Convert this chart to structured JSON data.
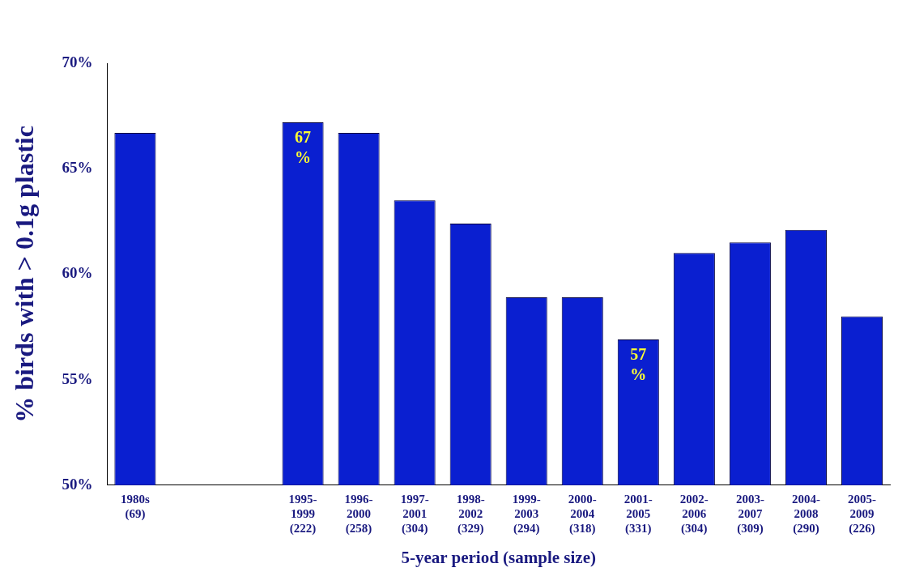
{
  "chart_data": {
    "type": "bar",
    "xlabel": "5-year period (sample size)",
    "ylabel": "% birds with > 0.1g plastic",
    "categories": [
      "1980s\n(69)",
      null,
      null,
      "1995-\n1999\n(222)",
      "1996-\n2000\n(258)",
      "1997-\n2001\n(304)",
      "1998-\n2002\n(329)",
      "1999-\n2003\n(294)",
      "2000-\n2004\n(318)",
      "2001-\n2005\n(331)",
      "2002-\n2006\n(304)",
      "2003-\n2007\n(309)",
      "2004-\n2008\n(290)",
      "2005-\n2009\n(226)"
    ],
    "values": [
      66.7,
      null,
      null,
      67.2,
      66.7,
      63.5,
      62.4,
      58.9,
      58.9,
      56.9,
      61.0,
      61.5,
      62.1,
      58.0
    ],
    "value_labels": [
      null,
      null,
      null,
      "67\n%",
      null,
      null,
      null,
      null,
      null,
      "57\n%",
      null,
      null,
      null,
      null
    ],
    "color": "#0a1fd0",
    "ylim": [
      50,
      70
    ],
    "yticks": [
      {
        "value": 50,
        "label": "50%"
      },
      {
        "value": 55,
        "label": "55%"
      },
      {
        "value": 60,
        "label": "60%"
      },
      {
        "value": 65,
        "label": "65%"
      },
      {
        "value": 70,
        "label": "70%"
      }
    ],
    "grid": false,
    "legend": false
  }
}
